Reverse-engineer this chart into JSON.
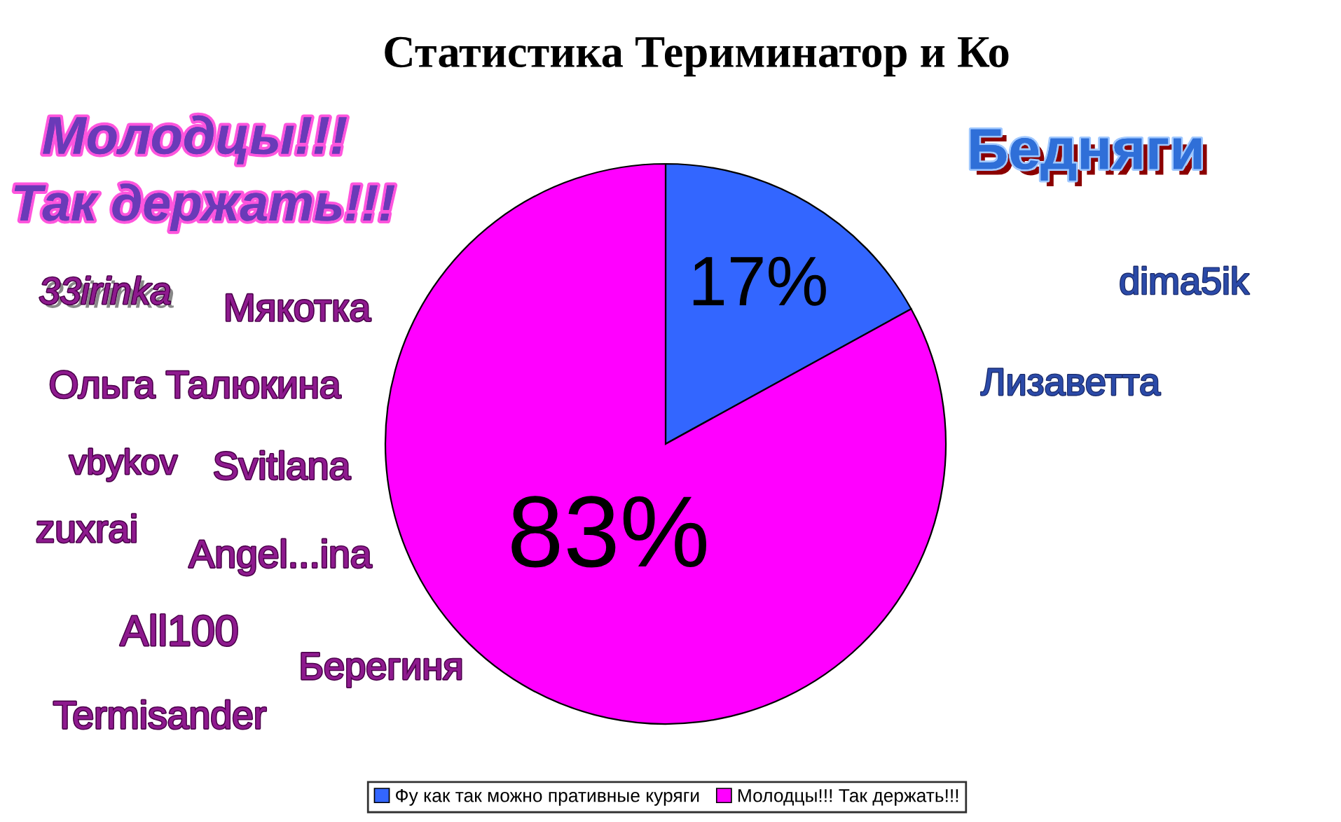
{
  "chart_data": {
    "type": "pie",
    "title": "Статистика Териминатор и Ко",
    "categories": [
      "Фу как так можно пративные куряги",
      "Молодцы!!! Так держать!!!"
    ],
    "values": [
      17,
      83
    ],
    "colors": [
      "#3366ff",
      "#ff00ff"
    ],
    "value_labels": [
      "17%",
      "83%"
    ],
    "legend": "bottom",
    "annotations": [
      "Молодцы!!!",
      "Так держать!!!",
      "Бедняги",
      "33irinka",
      "Мякотка",
      "dima5ik",
      "Ольга Талюкина",
      "Лизаветта",
      "vbykov",
      "Svitlana",
      "zuxrai",
      "Angel...ina",
      "All100",
      "Берегиня",
      "Termisander"
    ]
  }
}
